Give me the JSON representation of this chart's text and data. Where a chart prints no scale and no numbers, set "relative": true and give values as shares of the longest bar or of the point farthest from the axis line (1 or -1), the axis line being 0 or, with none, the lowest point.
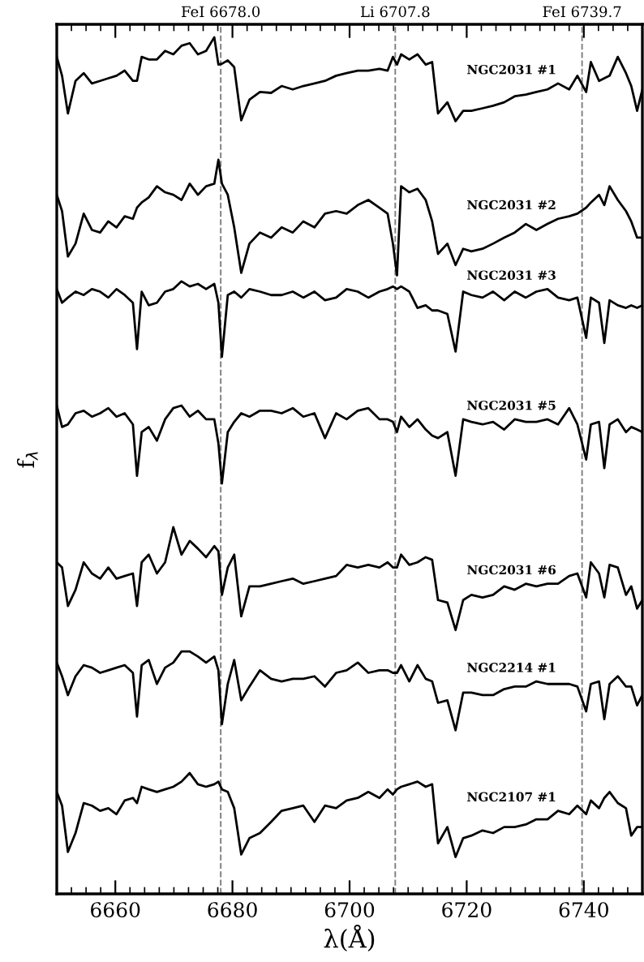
{
  "chart_data": {
    "type": "line",
    "relative": true,
    "xlabel": "λ(Å)",
    "ylabel": "f$_{λ}$",
    "xlim": [
      6650,
      6750
    ],
    "xticks": [
      6660,
      6680,
      6700,
      6720,
      6740
    ],
    "tick_labels": "x",
    "grid": false,
    "marker": "none",
    "line_style": "solid",
    "x": [
      6650.0,
      6650.9,
      6651.9,
      6653.2,
      6654.6,
      6656.0,
      6657.4,
      6658.8,
      6660.2,
      6661.6,
      6663.0,
      6663.7,
      6664.5,
      6665.7,
      6667.1,
      6668.5,
      6669.9,
      6671.3,
      6672.7,
      6674.1,
      6675.5,
      6676.9,
      6677.6,
      6678.2,
      6679.2,
      6680.3,
      6681.5,
      6682.9,
      6684.7,
      6686.6,
      6688.4,
      6690.3,
      6692.1,
      6694.0,
      6695.8,
      6697.7,
      6699.5,
      6701.4,
      6703.2,
      6705.1,
      6706.5,
      6707.4,
      6708.1,
      6708.8,
      6710.2,
      6711.6,
      6713.0,
      6714.1,
      6715.1,
      6716.7,
      6718.1,
      6719.4,
      6720.8,
      6722.7,
      6724.5,
      6726.4,
      6728.2,
      6730.1,
      6731.9,
      6733.8,
      6735.6,
      6737.5,
      6738.9,
      6740.4,
      6741.2,
      6742.6,
      6743.5,
      6744.4,
      6745.8,
      6747.2,
      6748.1,
      6749.1,
      6750.0
    ],
    "series": [
      {
        "name": "NGC2031 #1",
        "color": "#000000",
        "values": [
          0.977,
          0.955,
          0.911,
          0.949,
          0.958,
          0.946,
          0.949,
          0.952,
          0.955,
          0.961,
          0.949,
          0.949,
          0.977,
          0.974,
          0.974,
          0.984,
          0.98,
          0.99,
          0.993,
          0.98,
          0.984,
          1.0,
          0.968,
          0.969,
          0.973,
          0.965,
          0.903,
          0.927,
          0.936,
          0.935,
          0.943,
          0.939,
          0.943,
          0.946,
          0.949,
          0.955,
          0.958,
          0.961,
          0.961,
          0.963,
          0.961,
          0.977,
          0.968,
          0.98,
          0.974,
          0.98,
          0.968,
          0.971,
          0.911,
          0.924,
          0.902,
          0.914,
          0.914,
          0.917,
          0.92,
          0.924,
          0.931,
          0.933,
          0.936,
          0.939,
          0.946,
          0.939,
          0.955,
          0.936,
          0.971,
          0.949,
          0.952,
          0.955,
          0.977,
          0.958,
          0.943,
          0.914,
          0.939
        ]
      },
      {
        "name": "NGC2031 #2",
        "color": "#000000",
        "values": [
          0.816,
          0.797,
          0.744,
          0.759,
          0.794,
          0.775,
          0.772,
          0.785,
          0.778,
          0.791,
          0.788,
          0.801,
          0.807,
          0.813,
          0.826,
          0.819,
          0.816,
          0.81,
          0.829,
          0.816,
          0.826,
          0.829,
          0.857,
          0.829,
          0.816,
          0.778,
          0.725,
          0.759,
          0.772,
          0.766,
          0.778,
          0.772,
          0.785,
          0.778,
          0.794,
          0.797,
          0.794,
          0.804,
          0.81,
          0.801,
          0.794,
          0.759,
          0.722,
          0.826,
          0.819,
          0.823,
          0.81,
          0.785,
          0.747,
          0.759,
          0.734,
          0.753,
          0.75,
          0.753,
          0.759,
          0.766,
          0.772,
          0.782,
          0.775,
          0.782,
          0.788,
          0.791,
          0.794,
          0.801,
          0.807,
          0.816,
          0.804,
          0.826,
          0.81,
          0.797,
          0.785,
          0.766,
          0.766
        ]
      },
      {
        "name": "NGC2031 #3",
        "color": "#000000",
        "values": [
          0.706,
          0.69,
          0.696,
          0.703,
          0.699,
          0.706,
          0.703,
          0.696,
          0.706,
          0.699,
          0.69,
          0.636,
          0.703,
          0.687,
          0.69,
          0.703,
          0.706,
          0.715,
          0.709,
          0.712,
          0.706,
          0.712,
          0.69,
          0.627,
          0.699,
          0.703,
          0.696,
          0.706,
          0.703,
          0.699,
          0.699,
          0.703,
          0.696,
          0.703,
          0.693,
          0.696,
          0.706,
          0.703,
          0.696,
          0.703,
          0.706,
          0.709,
          0.706,
          0.709,
          0.703,
          0.684,
          0.687,
          0.681,
          0.681,
          0.677,
          0.633,
          0.703,
          0.699,
          0.696,
          0.703,
          0.693,
          0.703,
          0.696,
          0.703,
          0.706,
          0.696,
          0.693,
          0.696,
          0.649,
          0.696,
          0.69,
          0.643,
          0.693,
          0.687,
          0.684,
          0.687,
          0.684,
          0.687
        ]
      },
      {
        "name": "NGC2031 #5",
        "color": "#000000",
        "values": [
          0.57,
          0.545,
          0.548,
          0.561,
          0.564,
          0.557,
          0.561,
          0.567,
          0.557,
          0.561,
          0.548,
          0.488,
          0.539,
          0.545,
          0.529,
          0.554,
          0.567,
          0.57,
          0.557,
          0.564,
          0.554,
          0.554,
          0.526,
          0.479,
          0.539,
          0.551,
          0.561,
          0.557,
          0.564,
          0.564,
          0.561,
          0.567,
          0.557,
          0.561,
          0.532,
          0.561,
          0.554,
          0.564,
          0.567,
          0.554,
          0.554,
          0.551,
          0.539,
          0.557,
          0.545,
          0.554,
          0.542,
          0.535,
          0.532,
          0.539,
          0.488,
          0.554,
          0.551,
          0.548,
          0.551,
          0.542,
          0.554,
          0.551,
          0.551,
          0.554,
          0.548,
          0.567,
          0.548,
          0.507,
          0.548,
          0.551,
          0.497,
          0.548,
          0.554,
          0.539,
          0.545,
          0.542,
          0.539
        ]
      },
      {
        "name": "NGC2031 #6",
        "color": "#000000",
        "values": [
          0.387,
          0.381,
          0.336,
          0.355,
          0.387,
          0.374,
          0.368,
          0.381,
          0.368,
          0.371,
          0.374,
          0.336,
          0.387,
          0.396,
          0.374,
          0.387,
          0.428,
          0.396,
          0.412,
          0.403,
          0.393,
          0.406,
          0.4,
          0.349,
          0.381,
          0.396,
          0.324,
          0.359,
          0.359,
          0.362,
          0.365,
          0.368,
          0.362,
          0.365,
          0.368,
          0.371,
          0.384,
          0.381,
          0.384,
          0.381,
          0.387,
          0.381,
          0.381,
          0.396,
          0.384,
          0.387,
          0.393,
          0.39,
          0.343,
          0.34,
          0.308,
          0.343,
          0.349,
          0.346,
          0.349,
          0.359,
          0.355,
          0.362,
          0.359,
          0.362,
          0.362,
          0.371,
          0.374,
          0.346,
          0.387,
          0.374,
          0.346,
          0.384,
          0.381,
          0.349,
          0.359,
          0.333,
          0.343
        ]
      },
      {
        "name": "NGC2214 #1",
        "color": "#000000",
        "values": [
          0.27,
          0.254,
          0.232,
          0.254,
          0.267,
          0.264,
          0.258,
          0.261,
          0.264,
          0.267,
          0.258,
          0.207,
          0.267,
          0.273,
          0.245,
          0.264,
          0.27,
          0.283,
          0.283,
          0.277,
          0.27,
          0.277,
          0.261,
          0.198,
          0.245,
          0.273,
          0.226,
          0.242,
          0.261,
          0.251,
          0.248,
          0.251,
          0.251,
          0.254,
          0.242,
          0.258,
          0.261,
          0.27,
          0.258,
          0.261,
          0.261,
          0.258,
          0.258,
          0.267,
          0.248,
          0.267,
          0.251,
          0.248,
          0.223,
          0.226,
          0.191,
          0.235,
          0.235,
          0.232,
          0.232,
          0.239,
          0.242,
          0.242,
          0.248,
          0.245,
          0.245,
          0.245,
          0.242,
          0.213,
          0.245,
          0.248,
          0.204,
          0.245,
          0.254,
          0.242,
          0.242,
          0.22,
          0.232
        ]
      },
      {
        "name": "NGC2107 #1",
        "color": "#000000",
        "values": [
          0.119,
          0.103,
          0.049,
          0.071,
          0.106,
          0.103,
          0.097,
          0.1,
          0.093,
          0.109,
          0.112,
          0.106,
          0.125,
          0.122,
          0.119,
          0.122,
          0.125,
          0.131,
          0.141,
          0.128,
          0.125,
          0.128,
          0.131,
          0.122,
          0.119,
          0.1,
          0.046,
          0.065,
          0.071,
          0.084,
          0.097,
          0.1,
          0.103,
          0.084,
          0.103,
          0.1,
          0.109,
          0.112,
          0.119,
          0.112,
          0.122,
          0.116,
          0.122,
          0.125,
          0.128,
          0.131,
          0.125,
          0.128,
          0.059,
          0.078,
          0.043,
          0.065,
          0.068,
          0.074,
          0.071,
          0.078,
          0.078,
          0.081,
          0.087,
          0.087,
          0.097,
          0.093,
          0.103,
          0.093,
          0.109,
          0.1,
          0.112,
          0.119,
          0.106,
          0.1,
          0.068,
          0.078,
          0.078
        ]
      }
    ],
    "ref_lines": [
      {
        "axis": "x",
        "value": 6678.0,
        "label": "FeI 6678.0",
        "color": "#808080",
        "line_style": "dashed"
      },
      {
        "axis": "x",
        "value": 6707.8,
        "label": "Li 6707.8",
        "color": "#808080",
        "line_style": "dashed"
      },
      {
        "axis": "x",
        "value": 6739.7,
        "label": "FeI 6739.7",
        "color": "#808080",
        "line_style": "dashed"
      }
    ]
  }
}
